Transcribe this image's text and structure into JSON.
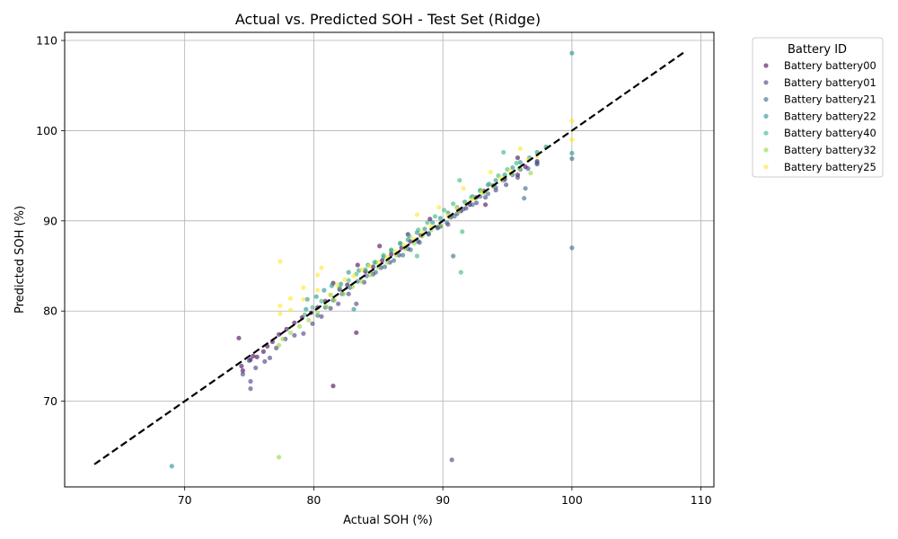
{
  "chart_data": {
    "type": "scatter",
    "title": "Actual vs. Predicted SOH - Test Set (Ridge)",
    "xlabel": "Actual SOH (%)",
    "ylabel": "Predicted SOH (%)",
    "xlim": [
      60.7,
      111.0
    ],
    "ylim": [
      60.5,
      110.9
    ],
    "xticks": [
      "70",
      "80",
      "90",
      "100",
      "110"
    ],
    "yticks": [
      "70",
      "80",
      "90",
      "100",
      "110"
    ],
    "grid": true,
    "legend": {
      "title": "Battery ID",
      "placement": "outside-right",
      "entries": [
        "Battery battery00",
        "Battery battery01",
        "Battery battery21",
        "Battery battery22",
        "Battery battery40",
        "Battery battery32",
        "Battery battery25"
      ]
    },
    "reference_line": {
      "style": "dashed",
      "color": "#000000",
      "from": [
        63,
        63
      ],
      "to": [
        108.7,
        108.7
      ]
    },
    "series": [
      {
        "name": "Battery battery00",
        "color": "#440154",
        "points": [
          [
            74.2,
            77.0
          ],
          [
            74.4,
            73.9
          ],
          [
            74.5,
            73.4
          ],
          [
            75.1,
            74.6
          ],
          [
            75.3,
            75.0
          ],
          [
            75.6,
            74.9
          ],
          [
            76.1,
            75.5
          ],
          [
            76.4,
            76.1
          ],
          [
            76.8,
            76.6
          ],
          [
            77.3,
            77.4
          ],
          [
            77.9,
            78.0
          ],
          [
            78.5,
            78.7
          ],
          [
            79.1,
            79.3
          ],
          [
            79.8,
            79.8
          ],
          [
            80.3,
            80.4
          ],
          [
            80.9,
            81.1
          ],
          [
            81.5,
            83.1
          ],
          [
            81.5,
            71.7
          ],
          [
            82.0,
            82.4
          ],
          [
            82.6,
            82.9
          ],
          [
            83.3,
            77.6
          ],
          [
            83.4,
            85.1
          ],
          [
            84.0,
            84.4
          ],
          [
            84.6,
            84.9
          ],
          [
            85.1,
            87.2
          ],
          [
            85.3,
            85.6
          ],
          [
            86.0,
            86.3
          ],
          [
            86.8,
            87.0
          ],
          [
            87.3,
            88.5
          ],
          [
            87.5,
            87.7
          ],
          [
            88.3,
            88.4
          ],
          [
            89.0,
            90.2
          ],
          [
            89.8,
            89.4
          ],
          [
            90.6,
            90.4
          ],
          [
            91.4,
            91.1
          ],
          [
            92.1,
            91.8
          ],
          [
            92.6,
            92.6
          ],
          [
            93.2,
            93.3
          ],
          [
            93.3,
            91.8
          ],
          [
            93.9,
            93.9
          ],
          [
            94.8,
            94.6
          ],
          [
            95.8,
            95.1
          ],
          [
            95.8,
            97.0
          ],
          [
            96.4,
            96.0
          ],
          [
            97.3,
            96.6
          ]
        ]
      },
      {
        "name": "Battery battery01",
        "color": "#443983",
        "points": [
          [
            74.5,
            73.0
          ],
          [
            75.0,
            74.5
          ],
          [
            75.1,
            72.2
          ],
          [
            75.1,
            71.4
          ],
          [
            75.5,
            73.7
          ],
          [
            76.2,
            74.4
          ],
          [
            76.6,
            74.8
          ],
          [
            77.1,
            75.9
          ],
          [
            77.8,
            76.9
          ],
          [
            78.5,
            77.3
          ],
          [
            79.2,
            77.5
          ],
          [
            79.9,
            78.6
          ],
          [
            80.6,
            79.4
          ],
          [
            81.3,
            80.3
          ],
          [
            81.9,
            80.8
          ],
          [
            82.7,
            81.9
          ],
          [
            83.3,
            80.8
          ],
          [
            83.9,
            83.2
          ],
          [
            84.6,
            84.1
          ],
          [
            85.2,
            84.8
          ],
          [
            85.9,
            85.4
          ],
          [
            86.6,
            86.2
          ],
          [
            87.3,
            86.9
          ],
          [
            88.1,
            87.7
          ],
          [
            88.9,
            88.6
          ],
          [
            89.6,
            89.3
          ],
          [
            90.4,
            89.6
          ],
          [
            90.7,
            63.5
          ],
          [
            91.1,
            90.8
          ],
          [
            91.8,
            91.4
          ],
          [
            92.6,
            92.0
          ],
          [
            93.3,
            92.6
          ],
          [
            94.1,
            93.4
          ],
          [
            94.9,
            94.0
          ],
          [
            95.8,
            94.8
          ],
          [
            96.6,
            95.8
          ],
          [
            97.3,
            96.3
          ]
        ]
      },
      {
        "name": "Battery battery21",
        "color": "#31688e",
        "points": [
          [
            80.3,
            79.5
          ],
          [
            80.9,
            80.4
          ],
          [
            81.5,
            81.2
          ],
          [
            82.2,
            81.9
          ],
          [
            82.8,
            82.6
          ],
          [
            83.4,
            83.3
          ],
          [
            84.1,
            83.9
          ],
          [
            84.8,
            84.3
          ],
          [
            85.5,
            84.9
          ],
          [
            86.2,
            85.6
          ],
          [
            86.9,
            86.2
          ],
          [
            87.5,
            86.8
          ],
          [
            88.2,
            87.6
          ],
          [
            88.9,
            88.5
          ],
          [
            89.6,
            89.2
          ],
          [
            90.3,
            89.8
          ],
          [
            90.8,
            86.1
          ],
          [
            90.9,
            90.5
          ],
          [
            91.6,
            91.3
          ],
          [
            92.3,
            91.8
          ],
          [
            92.9,
            92.7
          ],
          [
            93.5,
            93.0
          ],
          [
            94.1,
            93.7
          ],
          [
            94.7,
            94.5
          ],
          [
            95.4,
            95.1
          ],
          [
            96.0,
            95.7
          ],
          [
            96.3,
            92.5
          ],
          [
            96.4,
            93.6
          ],
          [
            97.3,
            96.4
          ],
          [
            100.0,
            87.0
          ],
          [
            100.0,
            96.9
          ]
        ]
      },
      {
        "name": "Battery battery22",
        "color": "#21918c",
        "points": [
          [
            69.0,
            62.8
          ],
          [
            79.4,
            80.2
          ],
          [
            79.5,
            81.3
          ],
          [
            80.2,
            81.6
          ],
          [
            80.8,
            82.3
          ],
          [
            81.4,
            82.8
          ],
          [
            82.1,
            83.0
          ],
          [
            82.7,
            84.3
          ],
          [
            83.1,
            80.2
          ],
          [
            83.5,
            84.5
          ],
          [
            84.2,
            85.1
          ],
          [
            84.8,
            85.4
          ],
          [
            85.4,
            86.0
          ],
          [
            86.0,
            86.7
          ],
          [
            86.7,
            87.5
          ],
          [
            87.3,
            87.9
          ],
          [
            88.0,
            88.7
          ],
          [
            88.6,
            89.1
          ],
          [
            89.2,
            89.8
          ],
          [
            89.8,
            90.3
          ],
          [
            90.4,
            90.9
          ],
          [
            91.1,
            91.5
          ],
          [
            91.7,
            92.1
          ],
          [
            92.3,
            92.7
          ],
          [
            92.9,
            93.4
          ],
          [
            93.5,
            94.0
          ],
          [
            94.1,
            94.5
          ],
          [
            94.8,
            95.1
          ],
          [
            95.4,
            95.9
          ],
          [
            96.0,
            96.5
          ],
          [
            96.7,
            97.0
          ],
          [
            97.3,
            97.6
          ],
          [
            98.0,
            98.2
          ],
          [
            100.0,
            97.5
          ],
          [
            100.0,
            108.6
          ]
        ]
      },
      {
        "name": "Battery battery40",
        "color": "#35b779",
        "points": [
          [
            79.3,
            79.6
          ],
          [
            79.9,
            80.4
          ],
          [
            80.6,
            81.1
          ],
          [
            81.3,
            81.8
          ],
          [
            82.0,
            82.6
          ],
          [
            82.7,
            83.4
          ],
          [
            83.3,
            84.1
          ],
          [
            84.0,
            84.6
          ],
          [
            84.7,
            85.4
          ],
          [
            85.4,
            86.2
          ],
          [
            86.0,
            86.8
          ],
          [
            86.7,
            87.5
          ],
          [
            87.4,
            88.3
          ],
          [
            88.0,
            86.1
          ],
          [
            88.1,
            89.0
          ],
          [
            88.8,
            89.8
          ],
          [
            89.4,
            90.5
          ],
          [
            90.1,
            91.2
          ],
          [
            90.8,
            91.9
          ],
          [
            91.3,
            94.5
          ],
          [
            91.4,
            84.3
          ],
          [
            91.5,
            88.8
          ],
          [
            92.2,
            92.6
          ],
          [
            92.9,
            93.3
          ],
          [
            93.6,
            94.1
          ],
          [
            94.3,
            95.0
          ],
          [
            94.7,
            97.6
          ],
          [
            95.0,
            95.7
          ],
          [
            95.7,
            96.4
          ]
        ]
      },
      {
        "name": "Battery battery32",
        "color": "#90d743",
        "points": [
          [
            77.3,
            63.8
          ],
          [
            77.3,
            76.2
          ],
          [
            77.6,
            76.9
          ],
          [
            78.2,
            77.6
          ],
          [
            78.9,
            78.3
          ],
          [
            79.6,
            79.0
          ],
          [
            80.3,
            79.8
          ],
          [
            81.0,
            80.5
          ],
          [
            81.6,
            81.2
          ],
          [
            82.3,
            81.9
          ],
          [
            83.0,
            82.7
          ],
          [
            83.7,
            83.3
          ],
          [
            84.4,
            84.0
          ],
          [
            85.0,
            84.8
          ],
          [
            85.7,
            85.4
          ],
          [
            86.4,
            86.2
          ],
          [
            87.1,
            86.9
          ],
          [
            87.8,
            87.5
          ],
          [
            88.4,
            88.3
          ],
          [
            89.1,
            89.0
          ],
          [
            89.8,
            89.5
          ],
          [
            90.5,
            90.4
          ],
          [
            91.2,
            91.0
          ],
          [
            91.8,
            91.9
          ],
          [
            92.5,
            92.5
          ],
          [
            93.2,
            93.1
          ],
          [
            93.9,
            93.8
          ],
          [
            94.6,
            94.5
          ],
          [
            95.3,
            95.2
          ],
          [
            95.9,
            95.8
          ],
          [
            96.8,
            95.3
          ]
        ]
      },
      {
        "name": "Battery battery25",
        "color": "#fde725",
        "points": [
          [
            77.4,
            79.7
          ],
          [
            77.4,
            80.6
          ],
          [
            77.4,
            85.5
          ],
          [
            78.2,
            80.1
          ],
          [
            78.2,
            81.4
          ],
          [
            79.2,
            81.3
          ],
          [
            79.2,
            82.6
          ],
          [
            80.3,
            82.3
          ],
          [
            80.3,
            84.0
          ],
          [
            80.6,
            84.8
          ],
          [
            81.3,
            81.8
          ],
          [
            81.8,
            82.9
          ],
          [
            82.4,
            83.5
          ],
          [
            83.1,
            83.9
          ],
          [
            83.7,
            84.6
          ],
          [
            84.3,
            85.0
          ],
          [
            85.0,
            85.4
          ],
          [
            85.7,
            86.0
          ],
          [
            86.3,
            86.6
          ],
          [
            87.0,
            87.3
          ],
          [
            87.7,
            88.0
          ],
          [
            88.0,
            90.7
          ],
          [
            88.4,
            88.7
          ],
          [
            89.1,
            89.4
          ],
          [
            89.7,
            91.5
          ],
          [
            90.4,
            90.6
          ],
          [
            91.1,
            91.4
          ],
          [
            91.6,
            93.6
          ],
          [
            92.3,
            92.4
          ],
          [
            93.0,
            93.2
          ],
          [
            93.7,
            95.4
          ],
          [
            94.5,
            94.8
          ],
          [
            95.2,
            95.5
          ],
          [
            96.0,
            98.0
          ],
          [
            96.6,
            96.8
          ],
          [
            97.3,
            97.2
          ],
          [
            100.0,
            101.1
          ],
          [
            100.0,
            99.0
          ]
        ]
      }
    ]
  }
}
